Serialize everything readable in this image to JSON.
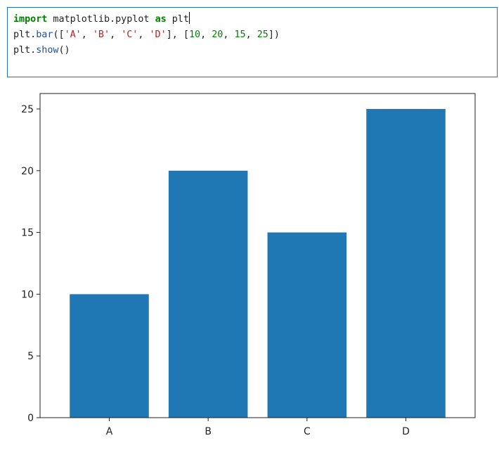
{
  "notebook": {
    "code_lines": [
      [
        {
          "text": "import",
          "kind": "kw"
        },
        {
          "text": " matplotlib.pyplot ",
          "kind": "plain"
        },
        {
          "text": "as",
          "kind": "kw"
        },
        {
          "text": " plt",
          "kind": "plain"
        }
      ],
      [
        {
          "text": "plt.",
          "kind": "plain"
        },
        {
          "text": "bar",
          "kind": "fn"
        },
        {
          "text": "([",
          "kind": "plain"
        },
        {
          "text": "'A'",
          "kind": "str"
        },
        {
          "text": ", ",
          "kind": "plain"
        },
        {
          "text": "'B'",
          "kind": "str"
        },
        {
          "text": ", ",
          "kind": "plain"
        },
        {
          "text": "'C'",
          "kind": "str"
        },
        {
          "text": ", ",
          "kind": "plain"
        },
        {
          "text": "'D'",
          "kind": "str"
        },
        {
          "text": "], [",
          "kind": "plain"
        },
        {
          "text": "10",
          "kind": "num"
        },
        {
          "text": ", ",
          "kind": "plain"
        },
        {
          "text": "20",
          "kind": "num"
        },
        {
          "text": ", ",
          "kind": "plain"
        },
        {
          "text": "15",
          "kind": "num"
        },
        {
          "text": ", ",
          "kind": "plain"
        },
        {
          "text": "25",
          "kind": "num"
        },
        {
          "text": "])",
          "kind": "plain"
        }
      ],
      [
        {
          "text": "plt.",
          "kind": "plain"
        },
        {
          "text": "show",
          "kind": "fn"
        },
        {
          "text": "()",
          "kind": "plain"
        }
      ]
    ]
  },
  "chart_data": {
    "type": "bar",
    "categories": [
      "A",
      "B",
      "C",
      "D"
    ],
    "values": [
      10,
      20,
      15,
      25
    ],
    "title": "",
    "xlabel": "",
    "ylabel": "",
    "ylim": [
      0,
      26.25
    ],
    "yticks": [
      0,
      5,
      10,
      15,
      20,
      25
    ],
    "grid": false,
    "bar_color": "#1f77b4"
  }
}
